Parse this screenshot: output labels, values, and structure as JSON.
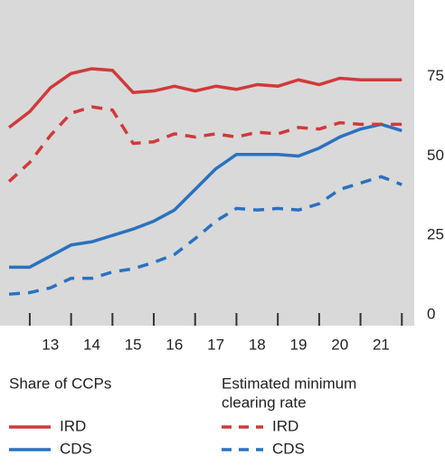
{
  "chart_data": {
    "type": "line",
    "x": [
      12,
      12.5,
      13,
      13.5,
      14,
      14.5,
      15,
      15.5,
      16,
      16.5,
      17,
      17.5,
      18,
      18.5,
      19,
      19.5,
      20,
      20.5,
      21,
      21.5
    ],
    "series": [
      {
        "name": "IRD",
        "color": "#d03a3a",
        "dashed": false,
        "group": 0,
        "values": [
          59,
          64,
          71.5,
          76,
          77.5,
          77,
          70,
          70.5,
          72,
          70.5,
          72,
          71,
          72.5,
          72,
          74,
          72.5,
          74.5,
          74,
          74,
          74
        ]
      },
      {
        "name": "CDS",
        "color": "#2a72c0",
        "dashed": false,
        "group": 0,
        "values": [
          15,
          15,
          18.5,
          22,
          23,
          25,
          27,
          29.5,
          33,
          39.5,
          46,
          50.5,
          50.5,
          50.5,
          50,
          52.5,
          56,
          58.5,
          60,
          58
        ]
      },
      {
        "name": "IRD",
        "color": "#d03a3a",
        "dashed": true,
        "group": 1,
        "values": [
          42,
          48,
          56.5,
          63.5,
          65.5,
          64.5,
          54,
          54.5,
          57,
          56,
          57,
          56,
          57.5,
          57,
          59,
          58.5,
          60.5,
          60,
          60,
          60
        ]
      },
      {
        "name": "CDS",
        "color": "#2a72c0",
        "dashed": true,
        "group": 1,
        "values": [
          6.5,
          7,
          8.5,
          11.5,
          11.5,
          13.5,
          14.5,
          16.5,
          19,
          24,
          29.5,
          33.5,
          33,
          33.5,
          33,
          35,
          39.5,
          41.5,
          43.5,
          41
        ]
      }
    ],
    "legend_groups": [
      {
        "title_lines": [
          "Share of CCPs"
        ]
      },
      {
        "title_lines": [
          "Estimated minimum",
          "clearing rate"
        ]
      }
    ],
    "xlim": [
      11.78,
      21.8
    ],
    "xticks": [
      13,
      14,
      15,
      16,
      17,
      18,
      19,
      20,
      21
    ],
    "ylim": [
      0,
      100
    ],
    "yticks": [
      0,
      25,
      50,
      75
    ],
    "y_axis_side": "right"
  }
}
